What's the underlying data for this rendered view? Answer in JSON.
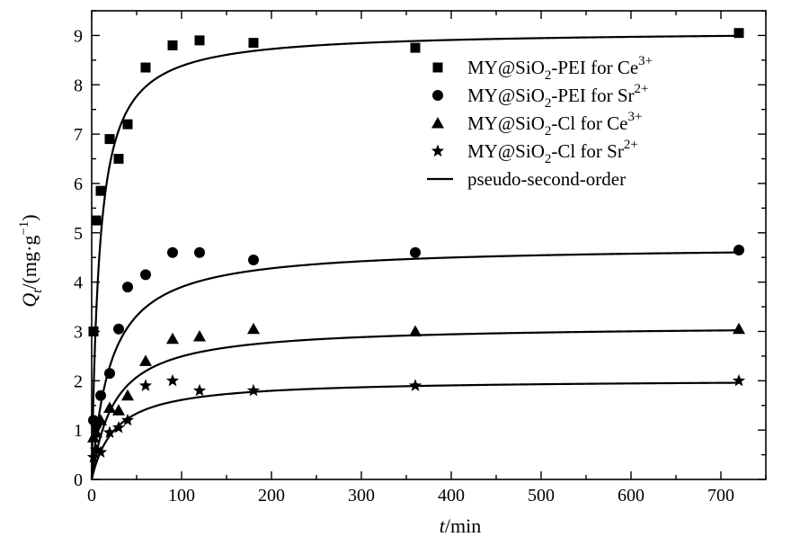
{
  "chart_data": {
    "type": "scatter",
    "title": "",
    "xlabel": {
      "var": "t",
      "unit": "/min"
    },
    "ylabel": {
      "var": "Q",
      "sub": "t",
      "unit_a": "/(mg·g",
      "unit_sup": "−1",
      "unit_b": ")"
    },
    "xlim": [
      0,
      750
    ],
    "ylim": [
      0,
      9.5
    ],
    "xticks": [
      0,
      100,
      200,
      300,
      400,
      500,
      600,
      700
    ],
    "yticks": [
      0,
      1,
      2,
      3,
      4,
      5,
      6,
      7,
      8,
      9
    ],
    "grid": false,
    "legend_position": "top-right",
    "fit_label": "pseudo-second-order",
    "series": [
      {
        "name": "MY@SiO2-PEI for Ce3+",
        "legend": {
          "pre": "MY@SiO",
          "sub": "2",
          "mid": "-PEI for Ce",
          "sup": "3+"
        },
        "marker": "square",
        "x": [
          2,
          5,
          10,
          20,
          30,
          40,
          60,
          90,
          120,
          180,
          360,
          720
        ],
        "y": [
          3.0,
          5.25,
          5.85,
          6.9,
          6.5,
          7.2,
          8.35,
          8.8,
          8.9,
          8.85,
          8.75,
          9.05
        ],
        "fit": {
          "qe": 9.1,
          "k": 0.0128
        }
      },
      {
        "name": "MY@SiO2-PEI for Sr2+",
        "legend": {
          "pre": "MY@SiO",
          "sub": "2",
          "mid": "-PEI for Sr",
          "sup": "2+"
        },
        "marker": "circle",
        "x": [
          2,
          5,
          10,
          20,
          30,
          40,
          60,
          90,
          120,
          180,
          360,
          720
        ],
        "y": [
          1.2,
          1.1,
          1.7,
          2.15,
          3.05,
          3.9,
          4.15,
          4.6,
          4.6,
          4.45,
          4.6,
          4.65
        ],
        "fit": {
          "qe": 4.74,
          "k": 0.0098
        }
      },
      {
        "name": "MY@SiO2-Cl for Ce3+",
        "legend": {
          "pre": "MY@SiO",
          "sub": "2",
          "mid": "-Cl for Ce",
          "sup": "3+"
        },
        "marker": "triangle",
        "x": [
          2,
          5,
          10,
          20,
          30,
          40,
          60,
          90,
          120,
          180,
          360,
          720
        ],
        "y": [
          0.85,
          0.95,
          1.2,
          1.45,
          1.4,
          1.7,
          2.4,
          2.85,
          2.9,
          3.05,
          3.0,
          3.05
        ],
        "fit": {
          "qe": 3.13,
          "k": 0.0125
        }
      },
      {
        "name": "MY@SiO2-Cl for Sr2+",
        "legend": {
          "pre": "MY@SiO",
          "sub": "2",
          "mid": "-Cl for Sr",
          "sup": "2+"
        },
        "marker": "star",
        "x": [
          2,
          5,
          10,
          20,
          30,
          40,
          60,
          90,
          120,
          180,
          360,
          720
        ],
        "y": [
          0.45,
          0.6,
          0.55,
          0.95,
          1.05,
          1.2,
          1.9,
          2.0,
          1.8,
          1.8,
          1.9,
          2.0
        ],
        "fit": {
          "qe": 2.03,
          "k": 0.019
        }
      }
    ]
  }
}
